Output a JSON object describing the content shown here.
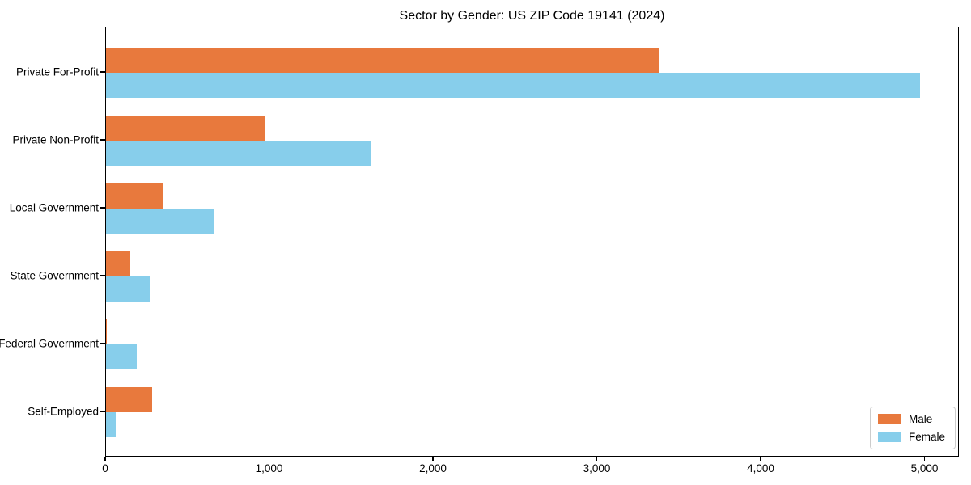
{
  "title": "Sector by Gender: US ZIP Code 19141 (2024)",
  "chart_data": {
    "type": "bar",
    "orientation": "horizontal",
    "title": "Sector by Gender: US ZIP Code 19141 (2024)",
    "categories": [
      "Private For-Profit",
      "Private Non-Profit",
      "Local Government",
      "State Government",
      "Federal Government",
      "Self-Employed"
    ],
    "series": [
      {
        "name": "Male",
        "color": "#E8793D",
        "values": [
          3380,
          970,
          345,
          150,
          5,
          280
        ]
      },
      {
        "name": "Female",
        "color": "#87CEEB",
        "values": [
          4970,
          1620,
          660,
          265,
          190,
          60
        ]
      }
    ],
    "xlim": [
      0,
      5210
    ],
    "x_ticks": [
      0,
      1000,
      2000,
      3000,
      4000,
      5000
    ],
    "x_tick_labels": [
      "0",
      "1,000",
      "2,000",
      "3,000",
      "4,000",
      "5,000"
    ],
    "xlabel": "",
    "ylabel": "",
    "grid": false,
    "legend_position": "lower right"
  },
  "legend": {
    "items": [
      {
        "label": "Male",
        "color": "#E8793D"
      },
      {
        "label": "Female",
        "color": "#87CEEB"
      }
    ]
  }
}
